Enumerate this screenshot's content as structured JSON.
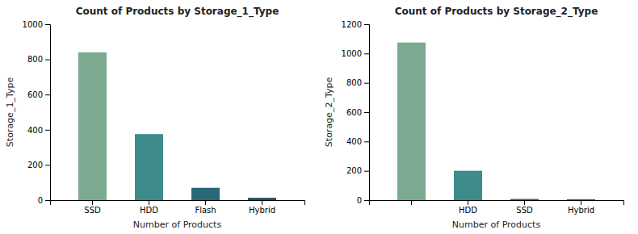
{
  "chart_data": [
    {
      "type": "bar",
      "title": "Count of Products by Storage_1_Type",
      "x_label": "Number of Products",
      "y_label": "Storage_1_Type",
      "categories": [
        "SSD",
        "HDD",
        "Flash",
        "Hybrid"
      ],
      "values": [
        840,
        375,
        70,
        13
      ],
      "colors": [
        "#7aab90",
        "#3d8b8b",
        "#2a6878",
        "#1b4f62"
      ],
      "ylim": [
        0,
        1000
      ],
      "yticks": [
        0,
        200,
        400,
        600,
        800,
        1000
      ]
    },
    {
      "type": "bar",
      "title": "Count of Products by Storage_2_Type",
      "x_label": "Number of Products",
      "y_label": "Storage_2_Type",
      "categories": [
        null,
        "HDD",
        "SSD",
        "Hybrid"
      ],
      "values": [
        1075,
        200,
        8,
        5
      ],
      "colors": [
        "#7aab90",
        "#3d8b8b",
        "#2a6878",
        "#1b4f62"
      ],
      "ylim": [
        0,
        1200
      ],
      "yticks": [
        0,
        200,
        400,
        600,
        800,
        1000,
        1200
      ]
    }
  ]
}
